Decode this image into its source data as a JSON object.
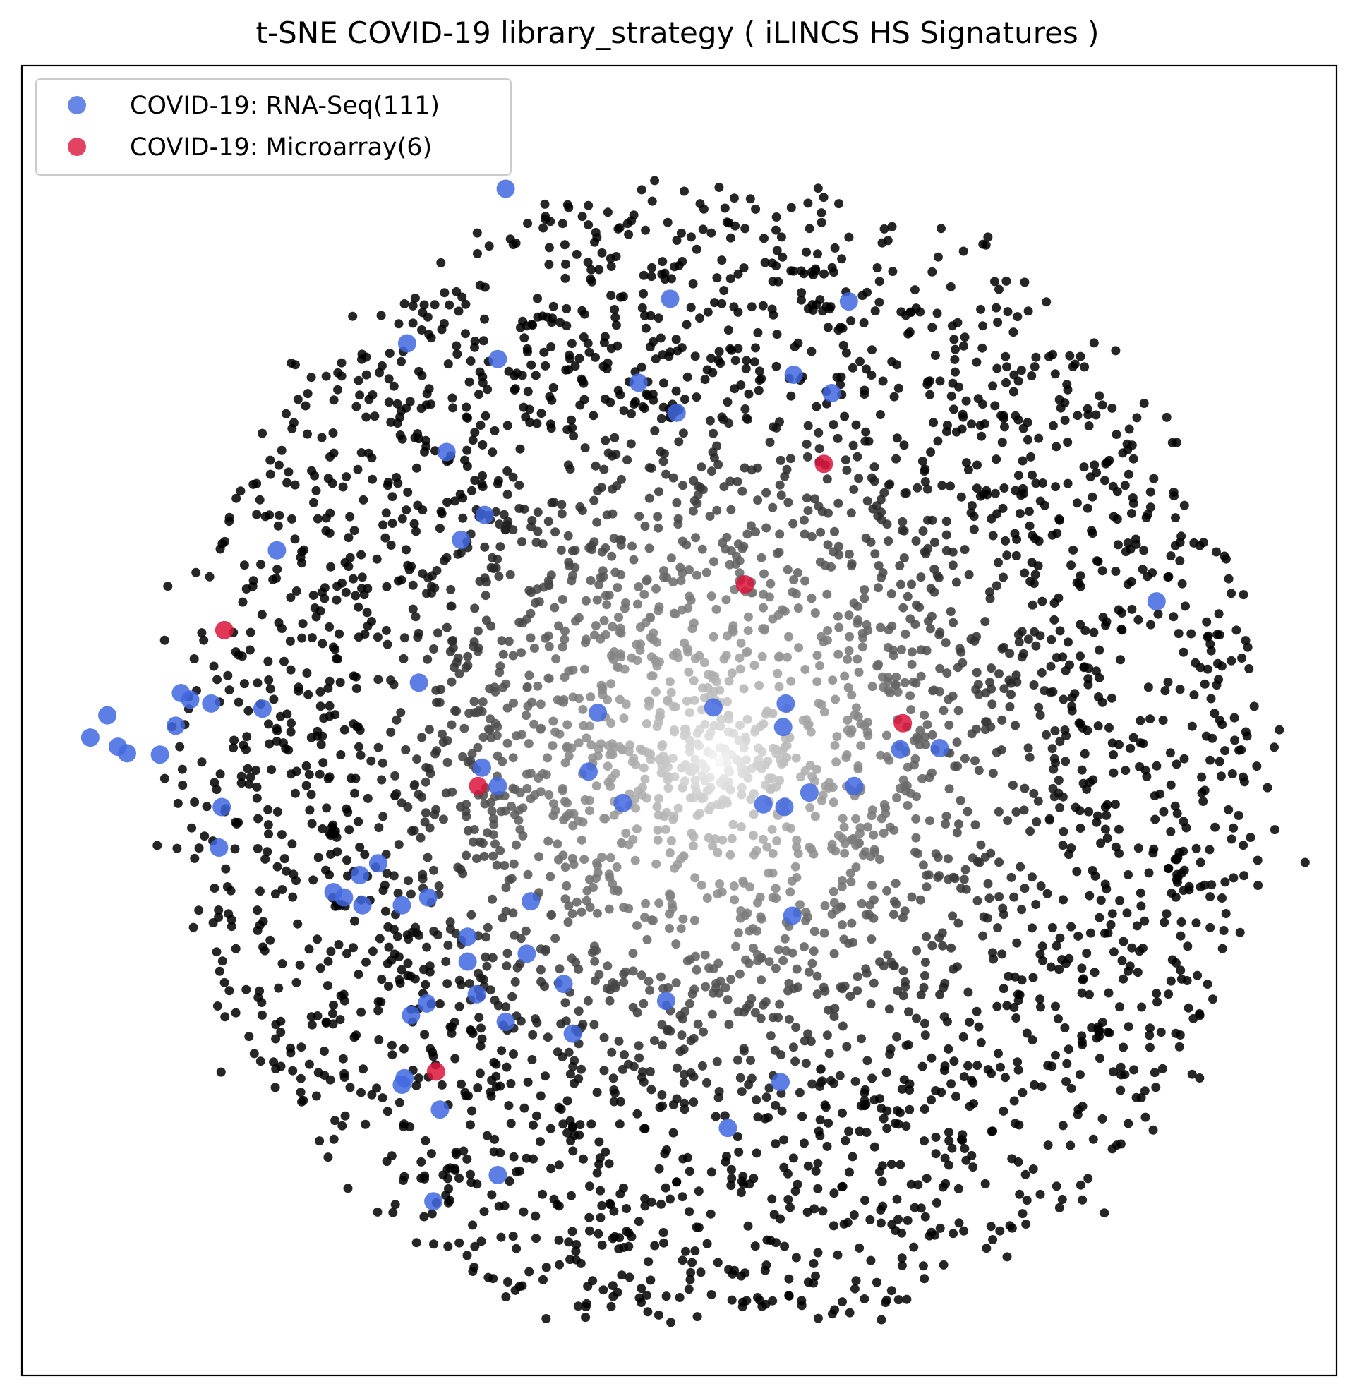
{
  "chart_data": {
    "type": "scatter",
    "title": "t-SNE COVID-19 library_strategy ( iLINCS HS Signatures )",
    "xlabel": "",
    "ylabel": "",
    "xlim": [
      0,
      100
    ],
    "ylim": [
      0,
      100
    ],
    "grid": false,
    "axis_ticks": false,
    "legend_position": "top-left",
    "background_points": {
      "description_color": "gradient from black at periphery to white at center",
      "count": 4000
    },
    "series": [
      {
        "name": "COVID-19: RNA-Seq(111)",
        "color": "#4169e1",
        "points": [
          [
            36.8,
            90.6
          ],
          [
            49.3,
            82.2
          ],
          [
            62.9,
            82.0
          ],
          [
            29.3,
            78.8
          ],
          [
            36.2,
            77.6
          ],
          [
            46.9,
            75.8
          ],
          [
            58.7,
            76.4
          ],
          [
            61.6,
            75.0
          ],
          [
            49.8,
            73.5
          ],
          [
            32.3,
            70.5
          ],
          [
            35.2,
            65.7
          ],
          [
            33.4,
            63.8
          ],
          [
            19.4,
            63.0
          ],
          [
            86.3,
            59.1
          ],
          [
            30.2,
            52.9
          ],
          [
            12.1,
            52.1
          ],
          [
            12.8,
            51.6
          ],
          [
            14.4,
            51.3
          ],
          [
            18.3,
            50.9
          ],
          [
            43.8,
            50.6
          ],
          [
            52.6,
            51.0
          ],
          [
            58.1,
            51.3
          ],
          [
            6.5,
            50.4
          ],
          [
            11.7,
            49.6
          ],
          [
            5.2,
            48.7
          ],
          [
            7.3,
            48.0
          ],
          [
            8.0,
            47.5
          ],
          [
            10.5,
            47.4
          ],
          [
            57.9,
            49.5
          ],
          [
            66.8,
            47.8
          ],
          [
            35.0,
            46.4
          ],
          [
            36.2,
            45.0
          ],
          [
            43.1,
            46.1
          ],
          [
            63.3,
            45.0
          ],
          [
            69.8,
            47.9
          ],
          [
            45.7,
            43.7
          ],
          [
            56.4,
            43.6
          ],
          [
            58.0,
            43.4
          ],
          [
            59.9,
            44.5
          ],
          [
            15.2,
            43.4
          ],
          [
            15.0,
            40.3
          ],
          [
            27.1,
            39.1
          ],
          [
            25.7,
            38.2
          ],
          [
            23.7,
            36.9
          ],
          [
            24.5,
            36.5
          ],
          [
            25.9,
            35.9
          ],
          [
            28.9,
            35.9
          ],
          [
            30.9,
            36.5
          ],
          [
            38.7,
            36.2
          ],
          [
            58.6,
            35.1
          ],
          [
            33.9,
            33.5
          ],
          [
            38.4,
            32.2
          ],
          [
            33.9,
            31.6
          ],
          [
            41.2,
            29.9
          ],
          [
            34.6,
            29.1
          ],
          [
            49.0,
            28.6
          ],
          [
            30.8,
            28.4
          ],
          [
            29.6,
            27.5
          ],
          [
            36.8,
            27.0
          ],
          [
            41.9,
            26.1
          ],
          [
            29.1,
            22.7
          ],
          [
            28.9,
            22.2
          ],
          [
            31.8,
            20.3
          ],
          [
            57.7,
            22.4
          ],
          [
            53.7,
            18.9
          ],
          [
            36.2,
            15.3
          ],
          [
            31.3,
            13.3
          ]
        ]
      },
      {
        "name": "COVID-19: Microarray(6)",
        "color": "#dc143c",
        "points": [
          [
            61.0,
            69.6
          ],
          [
            55.0,
            60.4
          ],
          [
            15.4,
            56.9
          ],
          [
            67.0,
            49.8
          ],
          [
            34.7,
            45.0
          ],
          [
            31.5,
            23.2
          ]
        ]
      }
    ]
  }
}
